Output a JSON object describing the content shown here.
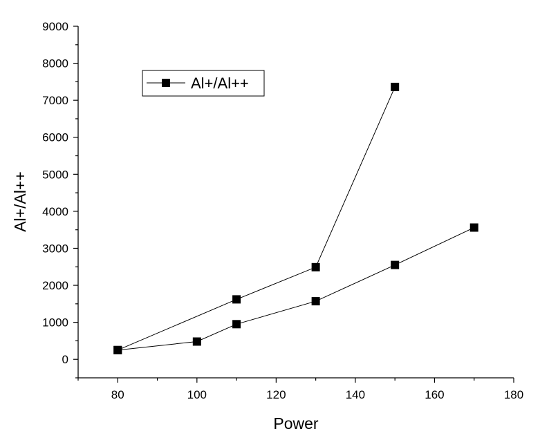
{
  "chart_data": {
    "type": "line",
    "xlabel": "Power",
    "ylabel": "Al+/Al++",
    "xlim": [
      70,
      180
    ],
    "ylim": [
      -500,
      9000
    ],
    "x_ticks": [
      "80",
      "100",
      "120",
      "140",
      "160",
      "180"
    ],
    "y_ticks": [
      "0",
      "1000",
      "2000",
      "3000",
      "4000",
      "5000",
      "6000",
      "7000",
      "8000",
      "9000"
    ],
    "grid": false,
    "legend_position": "top-left",
    "series": [
      {
        "name": "Al+/Al++",
        "color": "#000000",
        "marker": "square",
        "path": [
          {
            "x": 80,
            "y": 250
          },
          {
            "x": 110,
            "y": 1620
          },
          {
            "x": 130,
            "y": 2490
          },
          {
            "x": 150,
            "y": 7360
          }
        ]
      },
      {
        "name": "Al+/Al++",
        "color": "#000000",
        "marker": "square",
        "path": [
          {
            "x": 80,
            "y": 250
          },
          {
            "x": 100,
            "y": 480
          },
          {
            "x": 110,
            "y": 950
          },
          {
            "x": 130,
            "y": 1570
          },
          {
            "x": 150,
            "y": 2550
          },
          {
            "x": 170,
            "y": 3560
          }
        ]
      }
    ],
    "legend": [
      {
        "label": "Al+/Al++",
        "marker": "square"
      }
    ]
  }
}
